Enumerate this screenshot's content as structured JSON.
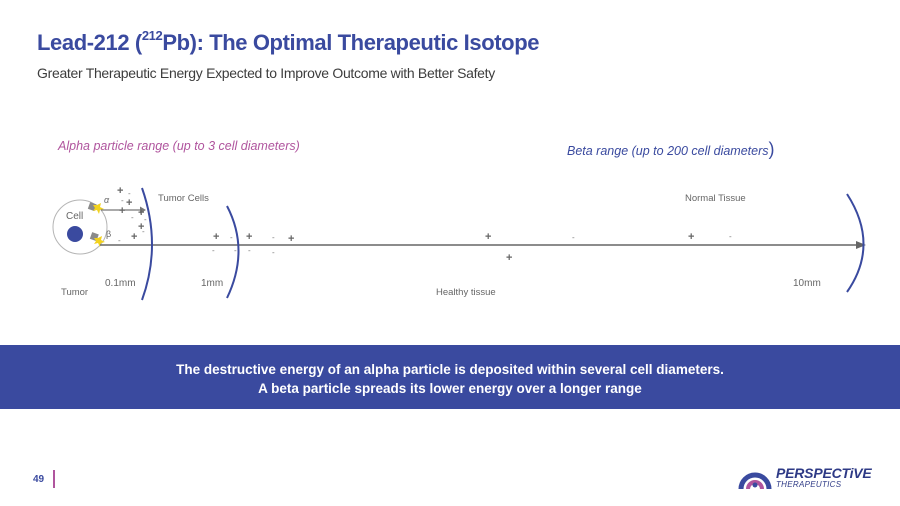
{
  "header": {
    "title_prefix": "Lead-212 (",
    "title_sup": "212",
    "title_suffix": "Pb): The Optimal Therapeutic Isotope",
    "subtitle": "Greater Therapeutic Energy Expected to Improve Outcome with Better Safety"
  },
  "diagram": {
    "alpha_range_label": "Alpha particle range (up to 3 cell diameters",
    "alpha_range_close": ")",
    "beta_range_label": "Beta range (up to 200 cell diameters",
    "beta_range_close": ")",
    "cell_label": "Cell",
    "alpha_symbol": "α",
    "beta_symbol": "β",
    "tumor_cells_label": "Tumor Cells",
    "normal_tissue_label": "Normal Tissue",
    "tumor_label": "Tumor",
    "healthy_tissue_label": "Healthy tissue",
    "distance_labels": [
      "0.1mm",
      "1mm",
      "10mm"
    ],
    "plus_sign": "+",
    "minus_sign": "-",
    "colors": {
      "accent": "#3a4a9f",
      "alpha": "#b0559e",
      "axis": "#666666",
      "yellow": "#f2d21e"
    }
  },
  "banner": {
    "line1": "The destructive energy of an alpha particle is deposited within several cell diameters.",
    "line2": "A beta particle spreads its lower energy over a longer range"
  },
  "footer": {
    "page_number": "49",
    "logo_name": "PERSPECTiVE",
    "logo_subtitle": "THERAPEUTICS"
  }
}
